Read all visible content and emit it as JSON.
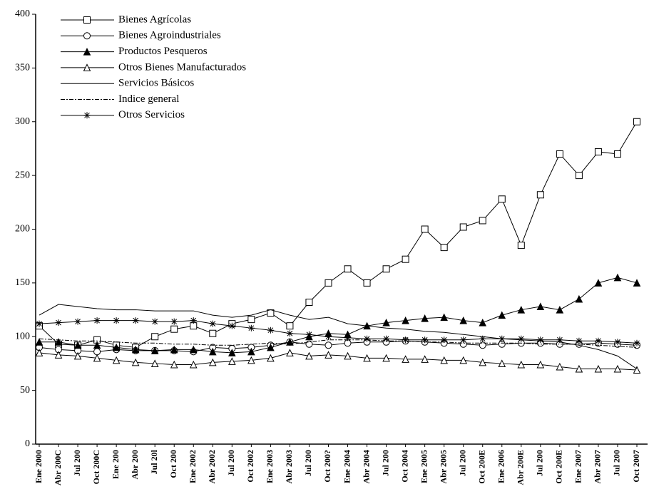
{
  "chart_data": {
    "type": "line",
    "categories": [
      "Ene 2000",
      "Abr 200C",
      "Jul 200",
      "Oct 200C",
      "Ene 200",
      "Abr 200",
      "Jul 20l",
      "Oct 200",
      "Ene 2002",
      "Abr 2002",
      "Jul 200",
      "Oct 2002",
      "Ene 2003",
      "Abr 2003",
      "Jul 200",
      "Oct 200?",
      "Ene 2004",
      "Abr 2004",
      "Jul 200",
      "Oct 2004",
      "Ene 2005",
      "Abr 2005",
      "Jul 200",
      "Oct 200E",
      "Ene 2006",
      "Abr 200E",
      "Jul 200",
      "Oct 200E",
      "Ene 2007",
      "Abr 2007",
      "Jul 200",
      "Oct 2007"
    ],
    "ylim": [
      0,
      400
    ],
    "yticks": [
      0,
      50,
      100,
      150,
      200,
      250,
      300,
      350,
      400
    ],
    "series": [
      {
        "name": "Bienes Agrícolas",
        "color": "#000000",
        "marker": "square",
        "values": [
          110,
          93,
          92,
          97,
          92,
          90,
          100,
          107,
          110,
          103,
          112,
          116,
          122,
          110,
          132,
          150,
          163,
          150,
          163,
          172,
          200,
          183,
          202,
          208,
          228,
          185,
          232,
          270,
          250,
          272,
          270,
          300
        ]
      },
      {
        "name": "Bienes Agroindustriales",
        "color": "#000000",
        "marker": "circle",
        "values": [
          90,
          88,
          87,
          86,
          88,
          87,
          87,
          87,
          86,
          90,
          89,
          90,
          92,
          95,
          93,
          92,
          94,
          95,
          95,
          96,
          95,
          94,
          93,
          92,
          93,
          94,
          94,
          93,
          93,
          94,
          93,
          92
        ]
      },
      {
        "name": "Productos Pesqueros",
        "color": "#000000",
        "marker": "triangle-filled",
        "values": [
          95,
          95,
          92,
          92,
          90,
          88,
          87,
          88,
          88,
          86,
          85,
          86,
          90,
          95,
          100,
          103,
          102,
          110,
          113,
          115,
          117,
          118,
          115,
          113,
          120,
          125,
          128,
          125,
          135,
          150,
          155,
          150
        ]
      },
      {
        "name": "Otros Bienes Manufacturados",
        "color": "#000000",
        "marker": "triangle",
        "values": [
          85,
          83,
          82,
          80,
          78,
          76,
          75,
          74,
          74,
          76,
          77,
          78,
          80,
          85,
          82,
          83,
          82,
          80,
          80,
          79,
          79,
          78,
          78,
          76,
          75,
          74,
          74,
          72,
          70,
          70,
          70,
          69
        ]
      },
      {
        "name": "Servicios Básicos",
        "color": "#000000",
        "marker": "none",
        "values": [
          120,
          130,
          128,
          126,
          125,
          125,
          124,
          124,
          124,
          120,
          118,
          120,
          125,
          120,
          116,
          118,
          112,
          110,
          108,
          107,
          105,
          104,
          102,
          100,
          98,
          97,
          96,
          95,
          92,
          88,
          82,
          70
        ]
      },
      {
        "name": "Indice general",
        "color": "#000000",
        "marker": "none",
        "dash": "6,2,2,2",
        "values": [
          98,
          97,
          96,
          96,
          95,
          94,
          94,
          93,
          93,
          92,
          92,
          93,
          94,
          93,
          95,
          97,
          97,
          97,
          96,
          96,
          95,
          95,
          94,
          94,
          94,
          94,
          93,
          93,
          93,
          92,
          91,
          90
        ]
      },
      {
        "name": "Otros Servicios",
        "color": "#000000",
        "marker": "star",
        "values": [
          112,
          113,
          114,
          115,
          115,
          115,
          114,
          114,
          115,
          112,
          110,
          108,
          106,
          103,
          102,
          100,
          99,
          98,
          98,
          97,
          97,
          97,
          97,
          98,
          98,
          98,
          97,
          97,
          96,
          96,
          95,
          94
        ]
      }
    ]
  }
}
